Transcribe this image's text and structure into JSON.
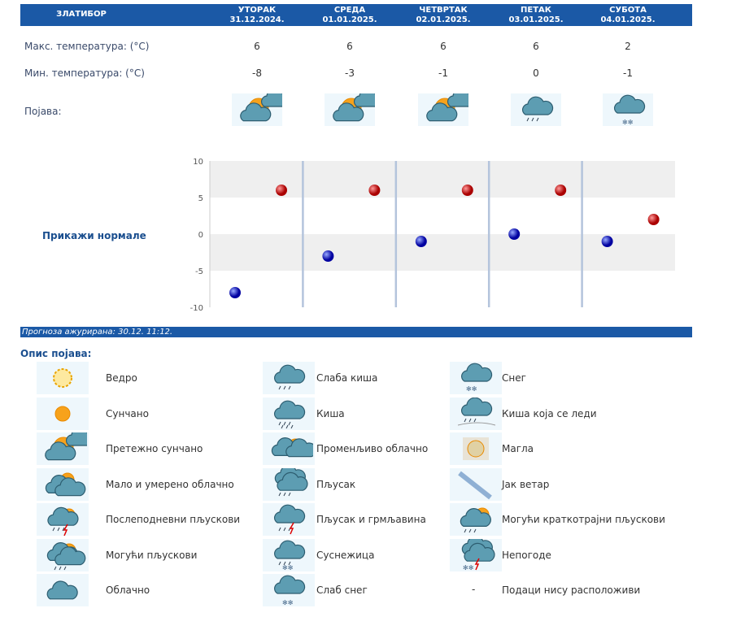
{
  "header": {
    "location": "ЗЛАТИБОР",
    "days": [
      {
        "name": "УТОРАК",
        "date": "31.12.2024."
      },
      {
        "name": "СРЕДА",
        "date": "01.01.2025."
      },
      {
        "name": "ЧЕТВРТАК",
        "date": "02.01.2025."
      },
      {
        "name": "ПЕТАК",
        "date": "03.01.2025."
      },
      {
        "name": "СУБОТА",
        "date": "04.01.2025."
      }
    ]
  },
  "rows": {
    "max_label": "Макс. температура: (°C)",
    "min_label": "Мин. температура: (°C)",
    "phen_label": "Појава:",
    "max": [
      "6",
      "6",
      "6",
      "6",
      "2"
    ],
    "min": [
      "-8",
      "-3",
      "-1",
      "0",
      "-1"
    ],
    "icons": [
      "partly-sunny",
      "partly-sunny",
      "partly-sunny",
      "light-rain",
      "light-snow"
    ]
  },
  "normals_link": "Прикажи нормале",
  "chart_data": {
    "type": "scatter",
    "categories": [
      "31.12.2024.",
      "01.01.2025.",
      "02.01.2025.",
      "03.01.2025.",
      "04.01.2025."
    ],
    "series": [
      {
        "values": [
          -8,
          -3,
          -1,
          0,
          -1
        ],
        "color": "#1010c0"
      },
      {
        "values": [
          6,
          6,
          6,
          6,
          2
        ],
        "color": "#cc0000"
      }
    ],
    "ylim": [
      -10,
      10
    ],
    "yticks": [
      "10",
      "5",
      "0",
      "-5",
      "-10"
    ],
    "grid": true
  },
  "updated": "Прогноза ажурирана:  30.12. 11:12.",
  "legend_title": "Опис појава:",
  "legend": [
    [
      {
        "icon": "clear",
        "label": "Ведро"
      },
      {
        "icon": "light-rain",
        "label": "Слаба киша"
      },
      {
        "icon": "snow",
        "label": "Снег"
      }
    ],
    [
      {
        "icon": "sunny",
        "label": "Сунчано"
      },
      {
        "icon": "rain",
        "label": "Киша"
      },
      {
        "icon": "freezing-rain",
        "label": "Киша која се леди"
      }
    ],
    [
      {
        "icon": "partly-sunny",
        "label": "Претежно сунчано"
      },
      {
        "icon": "variable-cloudy",
        "label": "Променљиво облачно"
      },
      {
        "icon": "fog",
        "label": "Магла"
      }
    ],
    [
      {
        "icon": "mostly-cloudy",
        "label": "Мало и умерено облачно"
      },
      {
        "icon": "showers",
        "label": "Пљусак"
      },
      {
        "icon": "strong-wind",
        "label": "Јак ветар"
      }
    ],
    [
      {
        "icon": "afternoon-showers",
        "label": "Послеподневни пљускови"
      },
      {
        "icon": "thunderstorm",
        "label": "Пљусак и грмљавина"
      },
      {
        "icon": "brief-showers",
        "label": "Могући краткотрајни пљускови"
      }
    ],
    [
      {
        "icon": "possible-showers",
        "label": "Могући пљускови"
      },
      {
        "icon": "sleet",
        "label": "Суснежица"
      },
      {
        "icon": "storm",
        "label": "Непогоде"
      }
    ],
    [
      {
        "icon": "cloudy",
        "label": "Облачно"
      },
      {
        "icon": "light-snow",
        "label": "Слаб снег"
      },
      {
        "icon": "none",
        "label": "Подаци нису расположиви",
        "dash": "-"
      }
    ]
  ],
  "colors": {
    "header": "#1b59a6",
    "band": "#efefef",
    "separator": "#b4c4dc"
  }
}
